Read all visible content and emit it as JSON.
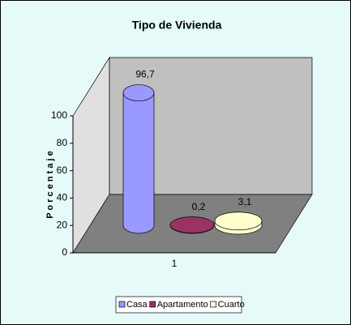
{
  "chart_data": {
    "type": "bar3d",
    "title": "Tipo de Vivienda",
    "y_label": "P o r c e n t a j e",
    "categories": [
      "1"
    ],
    "series": [
      {
        "name": "Casa",
        "color": "#9999ff",
        "values": [
          96.7
        ],
        "value_labels": [
          "96,7"
        ]
      },
      {
        "name": "Apartamento",
        "color": "#993366",
        "values": [
          0.2
        ],
        "value_labels": [
          "0,2"
        ]
      },
      {
        "name": "Cuarto",
        "color": "#ffffcc",
        "values": [
          3.1
        ],
        "value_labels": [
          "3,1"
        ]
      }
    ],
    "ylim": [
      0,
      100
    ],
    "yticks": [
      0,
      20,
      40,
      60,
      80,
      100
    ],
    "legend": "bottom"
  }
}
